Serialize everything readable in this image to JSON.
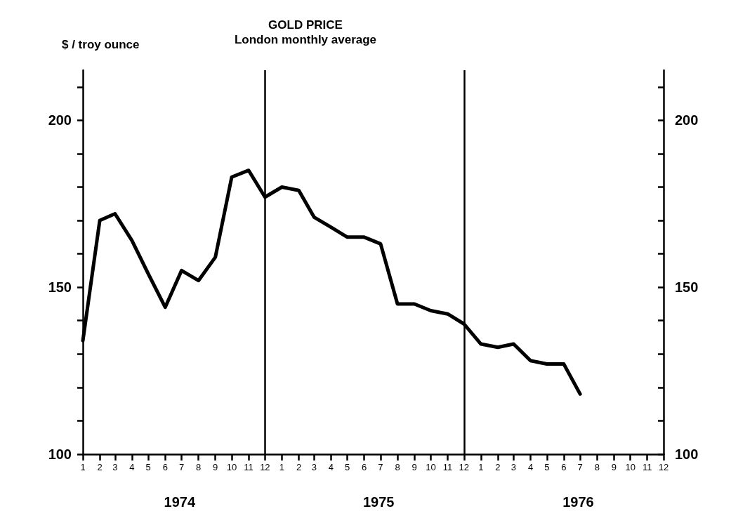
{
  "chart_data": {
    "type": "line",
    "title": "GOLD PRICE",
    "subtitle": "London monthly average",
    "ylabel": "$ / troy ounce",
    "x": [
      "1974-01",
      "1974-02",
      "1974-03",
      "1974-04",
      "1974-05",
      "1974-06",
      "1974-07",
      "1974-08",
      "1974-09",
      "1974-10",
      "1974-11",
      "1974-12",
      "1975-01",
      "1975-02",
      "1975-03",
      "1975-04",
      "1975-05",
      "1975-06",
      "1975-07",
      "1975-08",
      "1975-09",
      "1975-10",
      "1975-11",
      "1975-12",
      "1976-01",
      "1976-02",
      "1976-03",
      "1976-04",
      "1976-05",
      "1976-06",
      "1976-07"
    ],
    "series": [
      {
        "color": "#000000",
        "values": [
          134,
          170,
          172,
          164,
          154,
          144,
          155,
          152,
          159,
          183,
          185,
          177,
          180,
          179,
          171,
          168,
          165,
          165,
          163,
          145,
          145,
          143,
          142,
          139,
          133,
          132,
          133,
          128,
          127,
          127,
          118
        ]
      }
    ],
    "xlim": [
      "1974-01",
      "1976-12"
    ],
    "xticks": [
      {
        "value": "1974-01",
        "label": "1"
      },
      {
        "value": "1974-02",
        "label": "2"
      },
      {
        "value": "1974-03",
        "label": "3"
      },
      {
        "value": "1974-04",
        "label": "4"
      },
      {
        "value": "1974-05",
        "label": "5"
      },
      {
        "value": "1974-06",
        "label": "6"
      },
      {
        "value": "1974-07",
        "label": "7"
      },
      {
        "value": "1974-08",
        "label": "8"
      },
      {
        "value": "1974-09",
        "label": "9"
      },
      {
        "value": "1974-10",
        "label": "10"
      },
      {
        "value": "1974-11",
        "label": "11"
      },
      {
        "value": "1974-12",
        "label": "12"
      },
      {
        "value": "1975-01",
        "label": "1"
      },
      {
        "value": "1975-02",
        "label": "2"
      },
      {
        "value": "1975-03",
        "label": "3"
      },
      {
        "value": "1975-04",
        "label": "4"
      },
      {
        "value": "1975-05",
        "label": "5"
      },
      {
        "value": "1975-06",
        "label": "6"
      },
      {
        "value": "1975-07",
        "label": "7"
      },
      {
        "value": "1975-08",
        "label": "8"
      },
      {
        "value": "1975-09",
        "label": "9"
      },
      {
        "value": "1975-10",
        "label": "10"
      },
      {
        "value": "1975-11",
        "label": "11"
      },
      {
        "value": "1975-12",
        "label": "12"
      },
      {
        "value": "1976-01",
        "label": "1"
      },
      {
        "value": "1976-02",
        "label": "2"
      },
      {
        "value": "1976-03",
        "label": "3"
      },
      {
        "value": "1976-04",
        "label": "4"
      },
      {
        "value": "1976-05",
        "label": "5"
      },
      {
        "value": "1976-06",
        "label": "6"
      },
      {
        "value": "1976-07",
        "label": "7"
      },
      {
        "value": "1976-08",
        "label": "8"
      },
      {
        "value": "1976-09",
        "label": "9"
      },
      {
        "value": "1976-10",
        "label": "10"
      },
      {
        "value": "1976-11",
        "label": "11"
      },
      {
        "value": "1976-12",
        "label": "12"
      }
    ],
    "ylim": [
      100,
      215
    ],
    "yticks": [
      100,
      {
        "value": 110,
        "label": null
      },
      {
        "value": 120,
        "label": null
      },
      {
        "value": 130,
        "label": null
      },
      {
        "value": 140,
        "label": null
      },
      150,
      {
        "value": 160,
        "label": null
      },
      {
        "value": 170,
        "label": null
      },
      {
        "value": 180,
        "label": null
      },
      {
        "value": 190,
        "label": null
      },
      200,
      {
        "value": 210,
        "label": null
      }
    ],
    "y2lim": [
      100,
      215
    ],
    "y2ticks": [
      100,
      {
        "value": 110,
        "label": null
      },
      {
        "value": 120,
        "label": null
      },
      {
        "value": 130,
        "label": null
      },
      {
        "value": 140,
        "label": null
      },
      150,
      {
        "value": 160,
        "label": null
      },
      {
        "value": 170,
        "label": null
      },
      {
        "value": 180,
        "label": null
      },
      {
        "value": 190,
        "label": null
      },
      200,
      {
        "value": 210,
        "label": null
      }
    ],
    "ref_lines": [
      {
        "axis": "x",
        "value": "1974-12",
        "color": "#000000"
      },
      {
        "axis": "x",
        "value": "1975-12",
        "color": "#000000"
      }
    ],
    "annotations": [
      "1974",
      "1975",
      "1976"
    ],
    "marker": "none",
    "line_style": "solid"
  }
}
